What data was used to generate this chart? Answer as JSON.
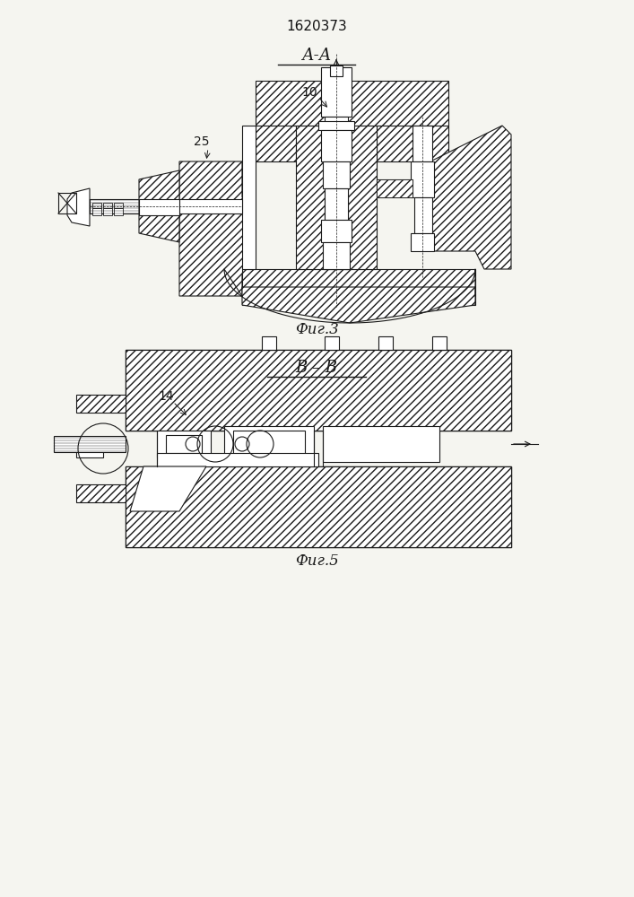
{
  "title": "1620373",
  "fig3_label": "А-А",
  "fig5_label": "В – В",
  "caption3": "Фиг.3",
  "caption5": "Фиг.5",
  "label_25": "25",
  "label_10": "10",
  "label_14": "14",
  "bg_color": "#f5f5f0",
  "line_color": "#1a1a1a",
  "hatch_color": "#2a2a2a",
  "fig_title_color": "#111111"
}
